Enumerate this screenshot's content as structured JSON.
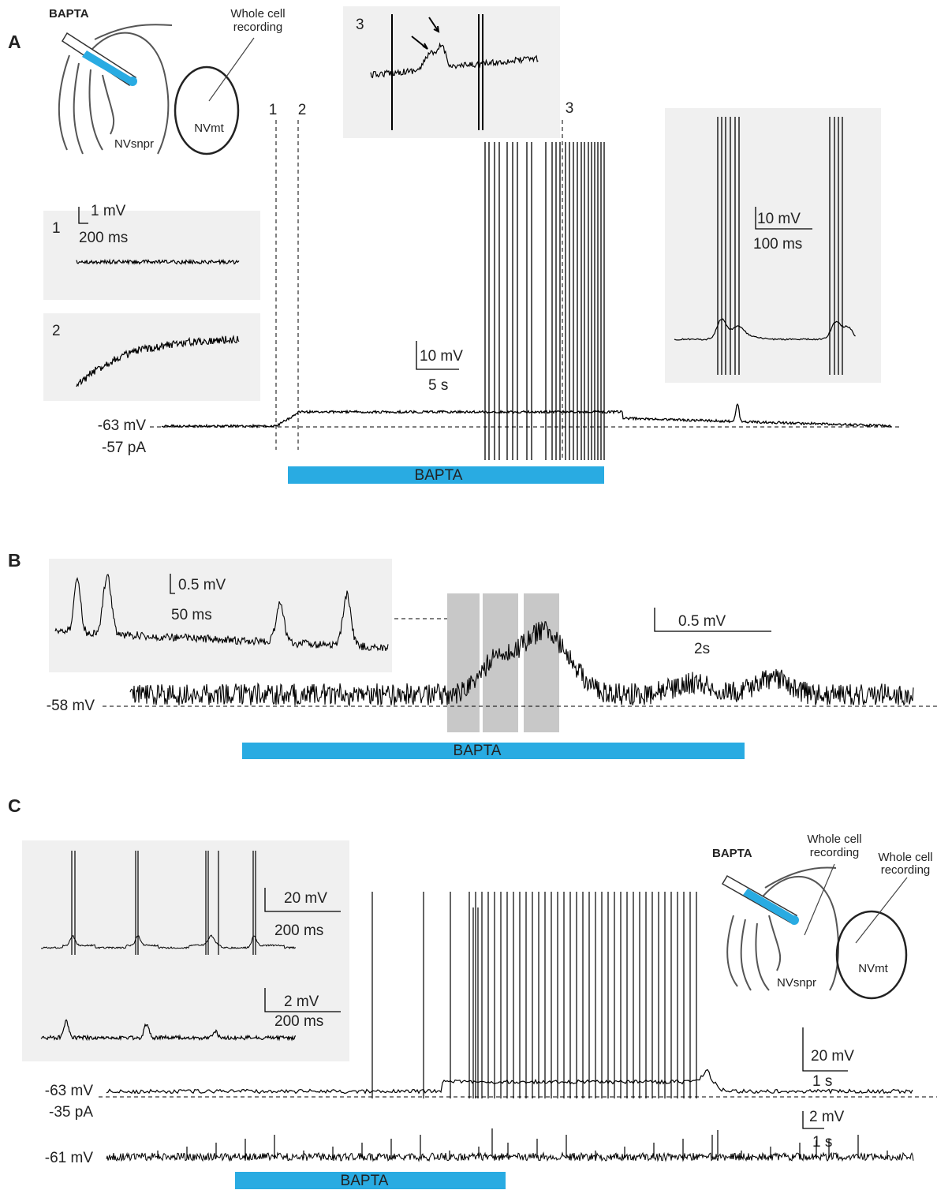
{
  "panel_a": {
    "label": "A",
    "schematic": {
      "drug": "BAPTA",
      "recording": [
        "Whole cell",
        "recording"
      ],
      "nucleus_1": "NVsnpr",
      "nucleus_2": "NVmt"
    },
    "markers": [
      "1",
      "2",
      "3"
    ],
    "inset_1": {
      "label": "1",
      "scale_y": "1 mV",
      "scale_x": "200 ms"
    },
    "inset_2": {
      "label": "2"
    },
    "inset_3": {
      "label": "3"
    },
    "inset_burst": {
      "scale_y": "10 mV",
      "scale_x": "100 ms"
    },
    "main_scale": {
      "y": "10 mV",
      "x": "5 s"
    },
    "holding": [
      "-63 mV",
      "-57 pA"
    ],
    "bar": "BAPTA"
  },
  "panel_b": {
    "label": "B",
    "inset": {
      "scale_y": "0.5 mV",
      "scale_x": "50 ms"
    },
    "main_scale": {
      "y": "0.5 mV",
      "x": "2s"
    },
    "holding": "-58 mV",
    "bar": "BAPTA"
  },
  "panel_c": {
    "label": "C",
    "inset_top": {
      "scale_y": "20 mV",
      "scale_x": "200 ms"
    },
    "inset_bottom": {
      "scale_y": "2 mV",
      "scale_x": "200 ms"
    },
    "schematic": {
      "drug": "BAPTA",
      "recording_1": [
        "Whole cell",
        "recording"
      ],
      "recording_2": [
        "Whole cell",
        "recording"
      ],
      "nucleus_1": "NVsnpr",
      "nucleus_2": "NVmt"
    },
    "scale_top": {
      "y": "20 mV",
      "x": "1 s"
    },
    "scale_bottom": {
      "y": "2 mV",
      "x": "1 s"
    },
    "holding_top": [
      "-63 mV",
      "-35 pA"
    ],
    "holding_bottom": "-61 mV",
    "bar": "BAPTA"
  }
}
